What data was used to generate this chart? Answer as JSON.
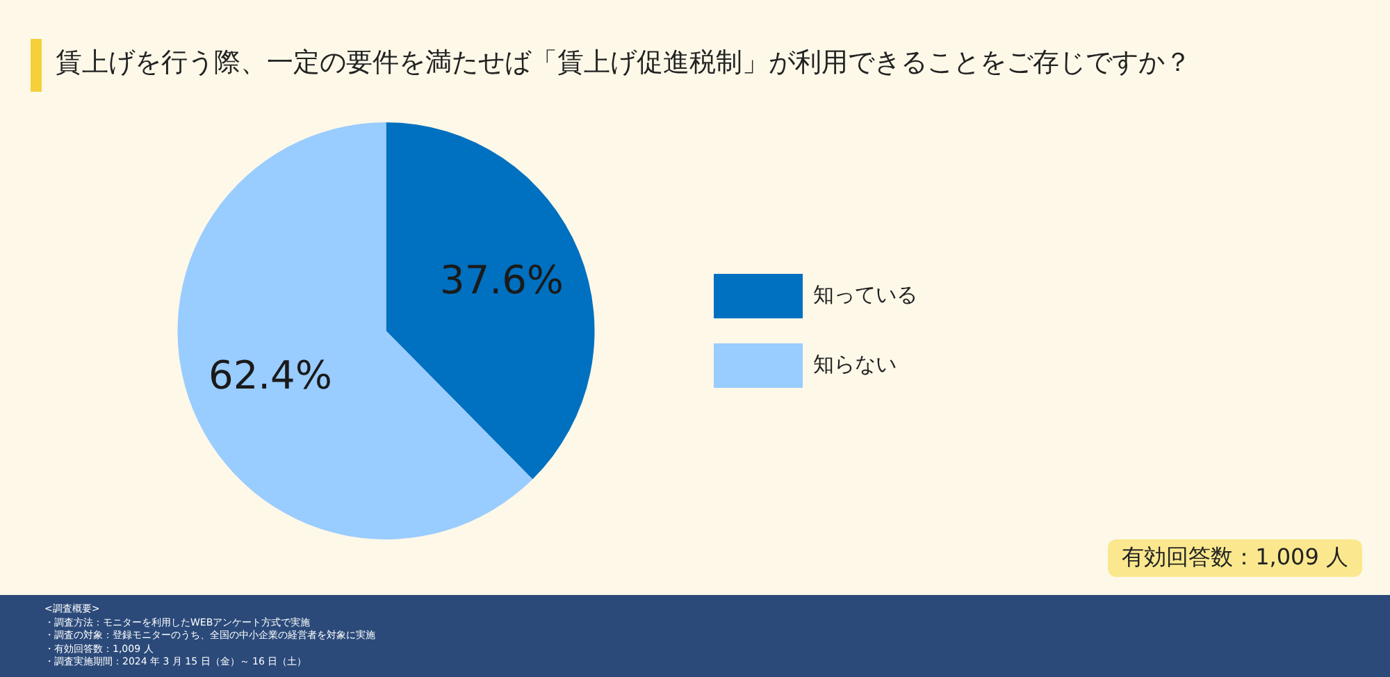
{
  "chart_data": {
    "type": "pie",
    "title": "賃上げを行う際、一定の要件を満たせば「賃上げ促進税制」が利用できることをご存じですか？",
    "categories": [
      "知っている",
      "知らない"
    ],
    "values": [
      37.6,
      62.4
    ],
    "colors": [
      "#0070c0",
      "#99ccff"
    ],
    "value_labels": [
      "37.6%",
      "62.4%"
    ],
    "legend": "right",
    "annotations": [
      "<調査概要>",
      "・調査方法：モニターを利用したWEBアンケート方式で実施",
      "・調査の対象：登録モニターのうち、全国の中小企業の経営者を対象に実施",
      "・有効回答数：1,009 人",
      "・調査実施期間：2024 年 3 月 15 日（金）～ 16 日（土）",
      "有効回答数：1,009 人"
    ]
  }
}
